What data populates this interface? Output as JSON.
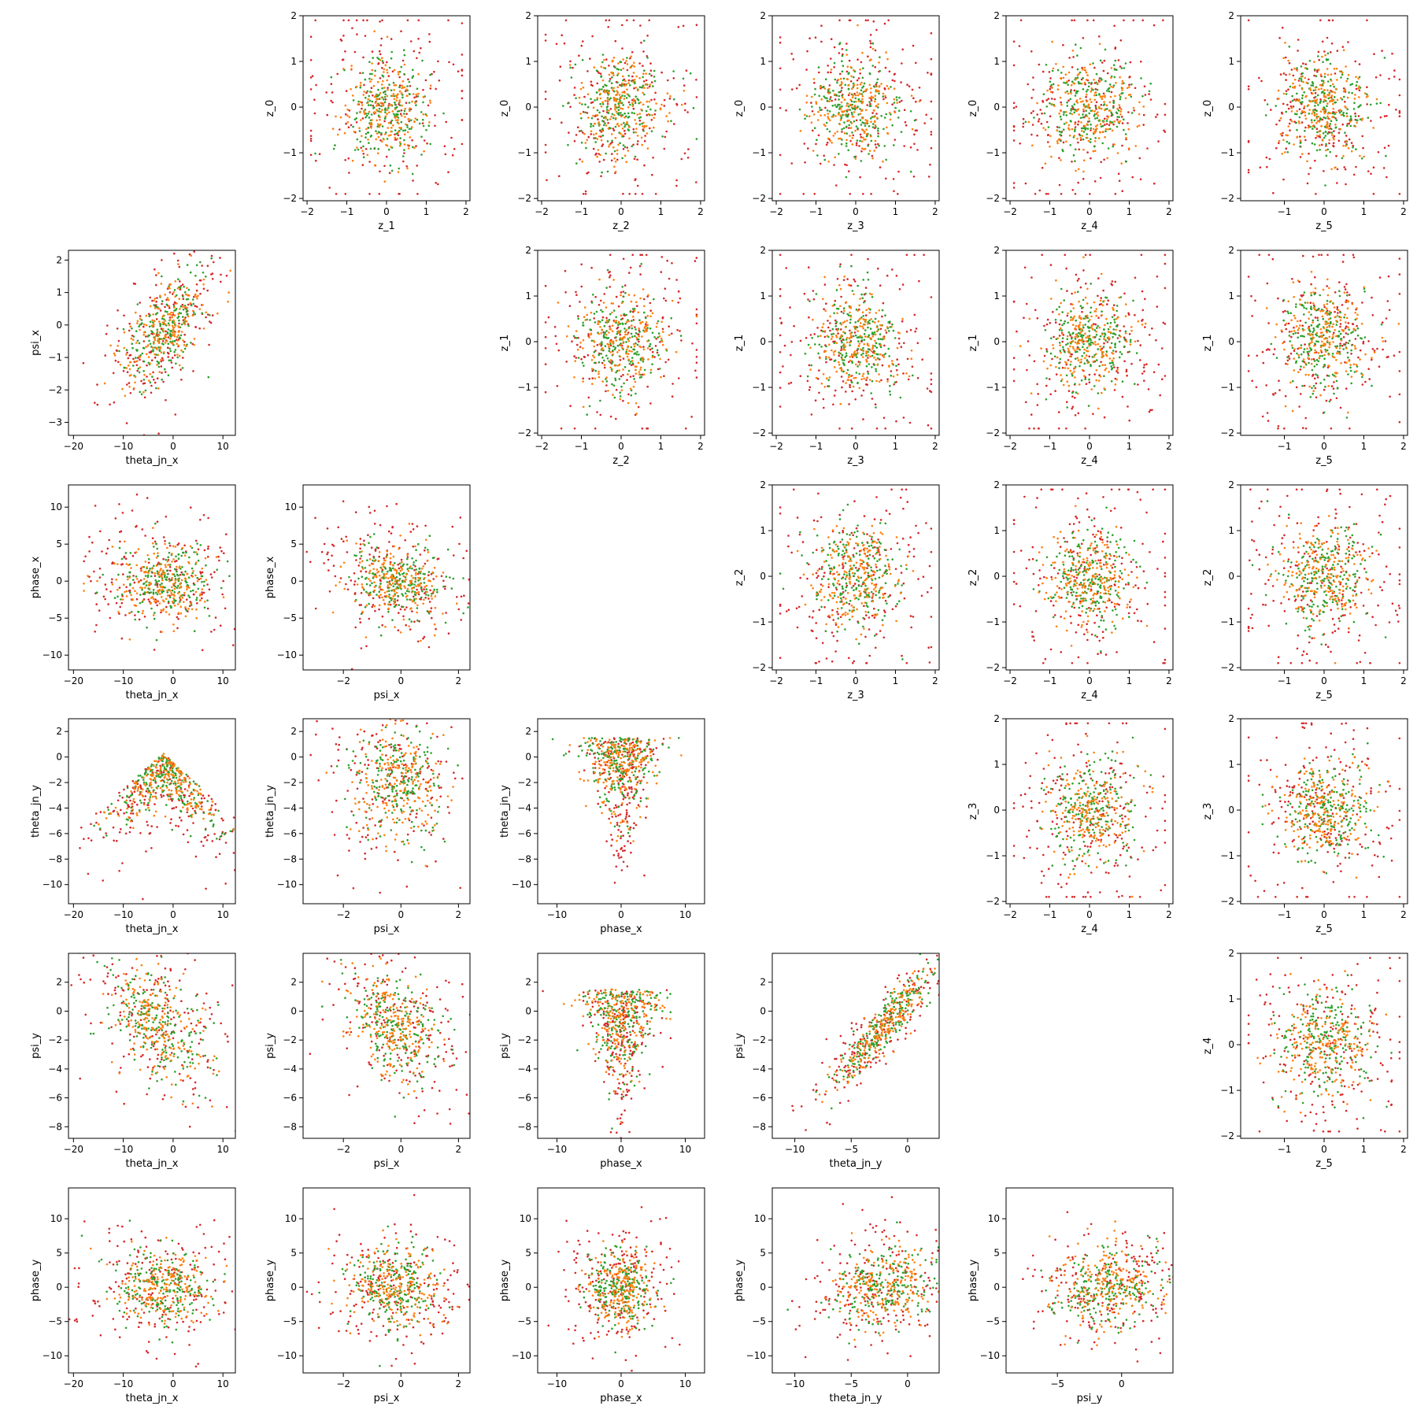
{
  "chart_data": [
    {
      "type": "scatter",
      "row": 0,
      "col": 1,
      "xlabel": "z_1",
      "ylabel": "z_0",
      "xlim": [
        -2.1,
        2.1
      ],
      "ylim": [
        -2.05,
        2.0
      ],
      "xticks": [
        -2,
        -1,
        0,
        1,
        2
      ],
      "yticks": [
        -2,
        -1,
        0,
        1,
        2
      ],
      "pattern": "radial",
      "sx": 0.55,
      "sy": 0.55,
      "rho": 0,
      "n": 600
    },
    {
      "type": "scatter",
      "row": 0,
      "col": 2,
      "xlabel": "z_2",
      "ylabel": "z_0",
      "xlim": [
        -2.1,
        2.1
      ],
      "ylim": [
        -2.05,
        2.0
      ],
      "xticks": [
        -2,
        -1,
        0,
        1,
        2
      ],
      "yticks": [
        -2,
        -1,
        0,
        1,
        2
      ],
      "pattern": "radial",
      "sx": 0.55,
      "sy": 0.55,
      "rho": 0,
      "n": 600
    },
    {
      "type": "scatter",
      "row": 0,
      "col": 3,
      "xlabel": "z_3",
      "ylabel": "z_0",
      "xlim": [
        -2.1,
        2.1
      ],
      "ylim": [
        -2.05,
        2.0
      ],
      "xticks": [
        -2,
        -1,
        0,
        1,
        2
      ],
      "yticks": [
        -2,
        -1,
        0,
        1,
        2
      ],
      "pattern": "radial",
      "sx": 0.55,
      "sy": 0.55,
      "rho": 0,
      "n": 600
    },
    {
      "type": "scatter",
      "row": 0,
      "col": 4,
      "xlabel": "z_4",
      "ylabel": "z_0",
      "xlim": [
        -2.1,
        2.1
      ],
      "ylim": [
        -2.05,
        2.0
      ],
      "xticks": [
        -2,
        -1,
        0,
        1,
        2
      ],
      "yticks": [
        -2,
        -1,
        0,
        1,
        2
      ],
      "pattern": "radial",
      "sx": 0.55,
      "sy": 0.55,
      "rho": 0,
      "n": 600
    },
    {
      "type": "scatter",
      "row": 0,
      "col": 5,
      "xlabel": "z_5",
      "ylabel": "z_0",
      "xlim": [
        -2.1,
        2.1
      ],
      "ylim": [
        -2.05,
        2.0
      ],
      "xticks": [
        -1,
        0,
        1,
        2
      ],
      "yticks": [
        -2,
        -1,
        0,
        1,
        2
      ],
      "pattern": "radial",
      "sx": 0.55,
      "sy": 0.55,
      "rho": 0,
      "n": 600
    },
    {
      "type": "scatter",
      "row": 1,
      "col": 0,
      "xlabel": "theta_jn_x",
      "ylabel": "psi_x",
      "xlim": [
        -21,
        12.5
      ],
      "ylim": [
        -3.4,
        2.3
      ],
      "xticks": [
        -20,
        -10,
        0,
        10
      ],
      "yticks": [
        -3,
        -2,
        -1,
        0,
        1,
        2
      ],
      "pattern": "gauss",
      "mx": -2,
      "my": -0.2,
      "sx": 4,
      "sy": 0.8,
      "rho": 0.55,
      "n": 600
    },
    {
      "type": "scatter",
      "row": 1,
      "col": 2,
      "xlabel": "z_2",
      "ylabel": "z_1",
      "xlim": [
        -2.1,
        2.1
      ],
      "ylim": [
        -2.05,
        2.0
      ],
      "xticks": [
        -2,
        -1,
        0,
        1,
        2
      ],
      "yticks": [
        -2,
        -1,
        0,
        1,
        2
      ],
      "pattern": "radial",
      "sx": 0.55,
      "sy": 0.55,
      "rho": 0,
      "n": 600
    },
    {
      "type": "scatter",
      "row": 1,
      "col": 3,
      "xlabel": "z_3",
      "ylabel": "z_1",
      "xlim": [
        -2.1,
        2.1
      ],
      "ylim": [
        -2.05,
        2.0
      ],
      "xticks": [
        -2,
        -1,
        0,
        1,
        2
      ],
      "yticks": [
        -2,
        -1,
        0,
        1,
        2
      ],
      "pattern": "radial",
      "sx": 0.55,
      "sy": 0.55,
      "rho": 0,
      "n": 600
    },
    {
      "type": "scatter",
      "row": 1,
      "col": 4,
      "xlabel": "z_4",
      "ylabel": "z_1",
      "xlim": [
        -2.1,
        2.1
      ],
      "ylim": [
        -2.05,
        2.0
      ],
      "xticks": [
        -2,
        -1,
        0,
        1,
        2
      ],
      "yticks": [
        -2,
        -1,
        0,
        1,
        2
      ],
      "pattern": "radial",
      "sx": 0.55,
      "sy": 0.55,
      "rho": 0,
      "n": 600
    },
    {
      "type": "scatter",
      "row": 1,
      "col": 5,
      "xlabel": "z_5",
      "ylabel": "z_1",
      "xlim": [
        -2.1,
        2.1
      ],
      "ylim": [
        -2.05,
        2.0
      ],
      "xticks": [
        -1,
        0,
        1,
        2
      ],
      "yticks": [
        -2,
        -1,
        0,
        1,
        2
      ],
      "pattern": "radial",
      "sx": 0.55,
      "sy": 0.55,
      "rho": 0,
      "n": 600
    },
    {
      "type": "scatter",
      "row": 2,
      "col": 0,
      "xlabel": "theta_jn_x",
      "ylabel": "phase_x",
      "xlim": [
        -21,
        12.5
      ],
      "ylim": [
        -12,
        13
      ],
      "xticks": [
        -20,
        -10,
        0,
        10
      ],
      "yticks": [
        -10,
        -5,
        0,
        5,
        10
      ],
      "pattern": "gauss",
      "mx": -2,
      "my": 0,
      "sx": 5,
      "sy": 2.5,
      "rho": 0,
      "n": 600
    },
    {
      "type": "scatter",
      "row": 2,
      "col": 1,
      "xlabel": "psi_x",
      "ylabel": "phase_x",
      "xlim": [
        -3.4,
        2.4
      ],
      "ylim": [
        -12,
        13
      ],
      "xticks": [
        -2,
        0,
        2
      ],
      "yticks": [
        -10,
        -5,
        0,
        5,
        10
      ],
      "pattern": "gauss",
      "mx": -0.2,
      "my": 0,
      "sx": 0.8,
      "sy": 2.5,
      "rho": -0.2,
      "n": 600
    },
    {
      "type": "scatter",
      "row": 2,
      "col": 3,
      "xlabel": "z_3",
      "ylabel": "z_2",
      "xlim": [
        -2.1,
        2.1
      ],
      "ylim": [
        -2.05,
        2.0
      ],
      "xticks": [
        -2,
        -1,
        0,
        1,
        2
      ],
      "yticks": [
        -2,
        -1,
        0,
        1,
        2
      ],
      "pattern": "radial",
      "sx": 0.55,
      "sy": 0.55,
      "rho": 0,
      "n": 600
    },
    {
      "type": "scatter",
      "row": 2,
      "col": 4,
      "xlabel": "z_4",
      "ylabel": "z_2",
      "xlim": [
        -2.1,
        2.1
      ],
      "ylim": [
        -2.05,
        2.0
      ],
      "xticks": [
        -2,
        -1,
        0,
        1,
        2
      ],
      "yticks": [
        -2,
        -1,
        0,
        1,
        2
      ],
      "pattern": "radial",
      "sx": 0.55,
      "sy": 0.55,
      "rho": 0,
      "n": 600
    },
    {
      "type": "scatter",
      "row": 2,
      "col": 5,
      "xlabel": "z_5",
      "ylabel": "z_2",
      "xlim": [
        -2.1,
        2.1
      ],
      "ylim": [
        -2.05,
        2.0
      ],
      "xticks": [
        -1,
        0,
        1,
        2
      ],
      "yticks": [
        -2,
        -1,
        0,
        1,
        2
      ],
      "pattern": "radial",
      "sx": 0.55,
      "sy": 0.55,
      "rho": 0,
      "n": 600
    },
    {
      "type": "scatter",
      "row": 3,
      "col": 0,
      "xlabel": "theta_jn_x",
      "ylabel": "theta_jn_y",
      "xlim": [
        -21,
        12.5
      ],
      "ylim": [
        -11.5,
        3
      ],
      "xticks": [
        -20,
        -10,
        0,
        10
      ],
      "yticks": [
        -10,
        -8,
        -6,
        -4,
        -2,
        0,
        2
      ],
      "pattern": "tent",
      "sx": 5,
      "sy": 1.8,
      "rho": 0,
      "n": 600
    },
    {
      "type": "scatter",
      "row": 3,
      "col": 1,
      "xlabel": "psi_x",
      "ylabel": "theta_jn_y",
      "xlim": [
        -3.4,
        2.4
      ],
      "ylim": [
        -11.5,
        3
      ],
      "xticks": [
        -2,
        0,
        2
      ],
      "yticks": [
        -10,
        -8,
        -6,
        -4,
        -2,
        0,
        2
      ],
      "pattern": "gauss",
      "mx": -0.2,
      "my": -2,
      "sx": 0.8,
      "sy": 2.2,
      "rho": 0,
      "n": 600
    },
    {
      "type": "scatter",
      "row": 3,
      "col": 2,
      "xlabel": "phase_x",
      "ylabel": "theta_jn_y",
      "xlim": [
        -13,
        13
      ],
      "ylim": [
        -11.5,
        3
      ],
      "xticks": [
        -10,
        0,
        10
      ],
      "yticks": [
        -10,
        -8,
        -6,
        -4,
        -2,
        0,
        2
      ],
      "pattern": "funnel",
      "sx": 2.5,
      "sy": 2.2,
      "rho": 0,
      "n": 600
    },
    {
      "type": "scatter",
      "row": 3,
      "col": 4,
      "xlabel": "z_4",
      "ylabel": "z_3",
      "xlim": [
        -2.1,
        2.1
      ],
      "ylim": [
        -2.05,
        2.0
      ],
      "xticks": [
        -2,
        -1,
        0,
        1,
        2
      ],
      "yticks": [
        -2,
        -1,
        0,
        1,
        2
      ],
      "pattern": "radial",
      "sx": 0.55,
      "sy": 0.55,
      "rho": 0,
      "n": 600
    },
    {
      "type": "scatter",
      "row": 3,
      "col": 5,
      "xlabel": "z_5",
      "ylabel": "z_3",
      "xlim": [
        -2.1,
        2.1
      ],
      "ylim": [
        -2.05,
        2.0
      ],
      "xticks": [
        -1,
        0,
        1,
        2
      ],
      "yticks": [
        -2,
        -1,
        0,
        1,
        2
      ],
      "pattern": "radial",
      "sx": 0.55,
      "sy": 0.55,
      "rho": 0,
      "n": 600
    },
    {
      "type": "scatter",
      "row": 4,
      "col": 0,
      "xlabel": "theta_jn_x",
      "ylabel": "psi_y",
      "xlim": [
        -21,
        12.5
      ],
      "ylim": [
        -8.8,
        4
      ],
      "xticks": [
        -20,
        -10,
        0,
        10
      ],
      "yticks": [
        -8,
        -6,
        -4,
        -2,
        0,
        2
      ],
      "pattern": "gauss",
      "mx": -3,
      "my": -1,
      "sx": 5,
      "sy": 2,
      "rho": -0.5,
      "n": 600
    },
    {
      "type": "scatter",
      "row": 4,
      "col": 1,
      "xlabel": "psi_x",
      "ylabel": "psi_y",
      "xlim": [
        -3.4,
        2.4
      ],
      "ylim": [
        -8.8,
        4
      ],
      "xticks": [
        -2,
        0,
        2
      ],
      "yticks": [
        -8,
        -6,
        -4,
        -2,
        0,
        2
      ],
      "pattern": "gauss",
      "mx": -0.2,
      "my": -1,
      "sx": 0.8,
      "sy": 2,
      "rho": -0.35,
      "n": 600
    },
    {
      "type": "scatter",
      "row": 4,
      "col": 2,
      "xlabel": "phase_x",
      "ylabel": "psi_y",
      "xlim": [
        -13,
        13
      ],
      "ylim": [
        -8.8,
        4
      ],
      "xticks": [
        -10,
        0,
        10
      ],
      "yticks": [
        -8,
        -6,
        -4,
        -2,
        0,
        2
      ],
      "pattern": "funnel",
      "sx": 2.5,
      "sy": 2,
      "rho": 0,
      "n": 600
    },
    {
      "type": "scatter",
      "row": 4,
      "col": 3,
      "xlabel": "theta_jn_y",
      "ylabel": "psi_y",
      "xlim": [
        -12,
        2.8
      ],
      "ylim": [
        -8.8,
        4
      ],
      "xticks": [
        -10,
        -5,
        0
      ],
      "yticks": [
        -8,
        -6,
        -4,
        -2,
        0,
        2
      ],
      "pattern": "gauss",
      "mx": -2,
      "my": -1,
      "sx": 2.2,
      "sy": 2,
      "rho": 0.92,
      "n": 600
    },
    {
      "type": "scatter",
      "row": 4,
      "col": 5,
      "xlabel": "z_5",
      "ylabel": "z_4",
      "xlim": [
        -2.1,
        2.1
      ],
      "ylim": [
        -2.05,
        2.0
      ],
      "xticks": [
        -1,
        0,
        1,
        2
      ],
      "yticks": [
        -2,
        -1,
        0,
        1,
        2
      ],
      "pattern": "radial",
      "sx": 0.55,
      "sy": 0.55,
      "rho": 0,
      "n": 600
    },
    {
      "type": "scatter",
      "row": 5,
      "col": 0,
      "xlabel": "theta_jn_x",
      "ylabel": "phase_y",
      "xlim": [
        -21,
        12.5
      ],
      "ylim": [
        -12.5,
        14.5
      ],
      "xticks": [
        -20,
        -10,
        0,
        10
      ],
      "yticks": [
        -10,
        -5,
        0,
        5,
        10
      ],
      "pattern": "gauss",
      "mx": -2,
      "my": 0,
      "sx": 5,
      "sy": 2.8,
      "rho": 0,
      "n": 600
    },
    {
      "type": "scatter",
      "row": 5,
      "col": 1,
      "xlabel": "psi_x",
      "ylabel": "phase_y",
      "xlim": [
        -3.4,
        2.4
      ],
      "ylim": [
        -12.5,
        14.5
      ],
      "xticks": [
        -2,
        0,
        2
      ],
      "yticks": [
        -10,
        -5,
        0,
        5,
        10
      ],
      "pattern": "gauss",
      "mx": -0.2,
      "my": 0,
      "sx": 0.8,
      "sy": 2.8,
      "rho": -0.1,
      "n": 600
    },
    {
      "type": "scatter",
      "row": 5,
      "col": 2,
      "xlabel": "phase_x",
      "ylabel": "phase_y",
      "xlim": [
        -13,
        13
      ],
      "ylim": [
        -12.5,
        14.5
      ],
      "xticks": [
        -10,
        0,
        10
      ],
      "yticks": [
        -10,
        -5,
        0,
        5,
        10
      ],
      "pattern": "gauss",
      "mx": 0,
      "my": 0,
      "sx": 2.5,
      "sy": 2.8,
      "rho": 0,
      "n": 600
    },
    {
      "type": "scatter",
      "row": 5,
      "col": 3,
      "xlabel": "theta_jn_y",
      "ylabel": "phase_y",
      "xlim": [
        -12,
        2.8
      ],
      "ylim": [
        -12.5,
        14.5
      ],
      "xticks": [
        -10,
        -5,
        0
      ],
      "yticks": [
        -10,
        -5,
        0,
        5,
        10
      ],
      "pattern": "gauss",
      "mx": -2,
      "my": 0,
      "sx": 2.2,
      "sy": 2.8,
      "rho": 0.1,
      "n": 600
    },
    {
      "type": "scatter",
      "row": 5,
      "col": 4,
      "xlabel": "psi_y",
      "ylabel": "phase_y",
      "xlim": [
        -9,
        4
      ],
      "ylim": [
        -12.5,
        14.5
      ],
      "xticks": [
        -5,
        0
      ],
      "yticks": [
        -10,
        -5,
        0,
        5,
        10
      ],
      "pattern": "gauss",
      "mx": -1,
      "my": 0,
      "sx": 2,
      "sy": 2.8,
      "rho": 0.15,
      "n": 600
    }
  ],
  "colors": {
    "red": "#d62728",
    "green": "#2ca02c",
    "orange": "#ff7f0e"
  }
}
